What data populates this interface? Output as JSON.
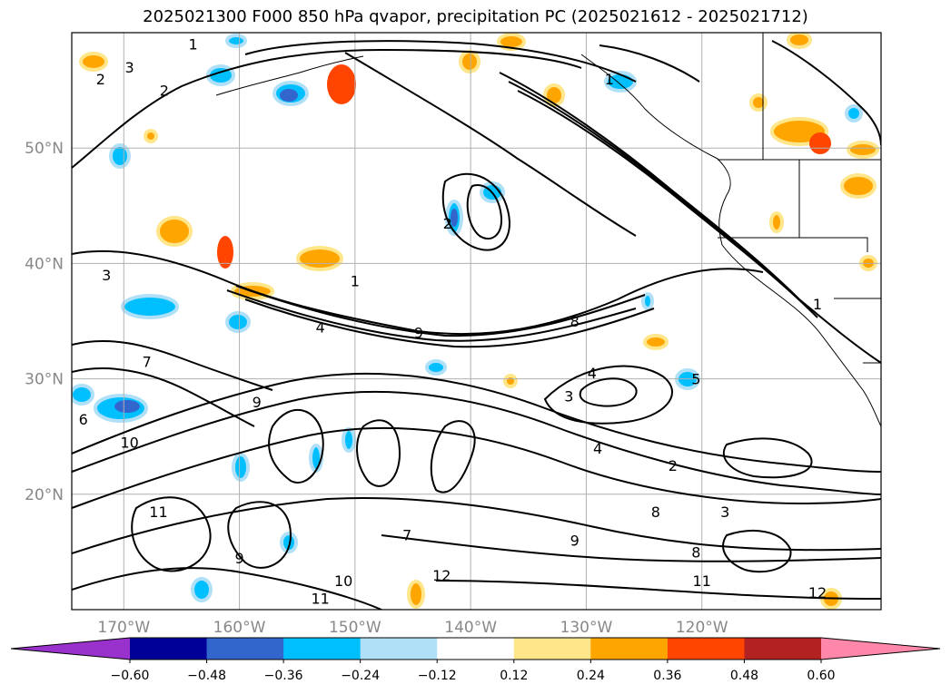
{
  "chart_data": {
    "type": "heatmap",
    "title": "2025021300 F000 850 hPa qvapor, precipitation PC (2025021612 - 2025021712)",
    "projection": "cylindrical lat-lon map",
    "x_axis": {
      "ticks": [
        -170,
        -160,
        -150,
        -140,
        -130,
        -120
      ],
      "tick_labels": [
        "170°W",
        "160°W",
        "150°W",
        "140°W",
        "130°W",
        "120°W"
      ],
      "range": [
        -174.5,
        -104.5
      ]
    },
    "y_axis": {
      "ticks": [
        20,
        30,
        40,
        50
      ],
      "tick_labels": [
        "20°N",
        "30°N",
        "40°N",
        "50°N"
      ],
      "range": [
        10,
        60
      ]
    },
    "grid": true,
    "colorbar": {
      "orientation": "horizontal",
      "placement": "bottom",
      "extend": "both",
      "levels": [
        -0.6,
        -0.48,
        -0.36,
        -0.24,
        -0.12,
        0.12,
        0.24,
        0.36,
        0.48,
        0.6
      ],
      "tick_labels": [
        "−0.60",
        "−0.48",
        "−0.36",
        "−0.24",
        "−0.12",
        "0.12",
        "0.24",
        "0.36",
        "0.48",
        "0.60"
      ],
      "colors": [
        "#9932cc",
        "#000099",
        "#3366cc",
        "#00bfff",
        "#b0e0f8",
        "#ffffff",
        "#ffe68a",
        "#ffa500",
        "#ff4500",
        "#b22222",
        "#ff88aa"
      ]
    },
    "contour_labels": [
      {
        "text": "1",
        "lon": -150.0,
        "lat": 38.5
      },
      {
        "text": "1",
        "lon": -164.0,
        "lat": 59.0
      },
      {
        "text": "1",
        "lon": -128.0,
        "lat": 56.0
      },
      {
        "text": "1",
        "lon": -110.0,
        "lat": 36.5
      },
      {
        "text": "2",
        "lon": -172.0,
        "lat": 56.0
      },
      {
        "text": "2",
        "lon": -166.5,
        "lat": 55.0
      },
      {
        "text": "2",
        "lon": -142.0,
        "lat": 43.5
      },
      {
        "text": "2",
        "lon": -122.5,
        "lat": 22.5
      },
      {
        "text": "3",
        "lon": -169.5,
        "lat": 57.0
      },
      {
        "text": "3",
        "lon": -171.5,
        "lat": 39.0
      },
      {
        "text": "3",
        "lon": -131.5,
        "lat": 28.5
      },
      {
        "text": "3",
        "lon": -118.0,
        "lat": 18.5
      },
      {
        "text": "4",
        "lon": -153.0,
        "lat": 34.5
      },
      {
        "text": "4",
        "lon": -129.5,
        "lat": 30.5
      },
      {
        "text": "4",
        "lon": -129.0,
        "lat": 24.0
      },
      {
        "text": "5",
        "lon": -120.5,
        "lat": 30.0
      },
      {
        "text": "6",
        "lon": -173.5,
        "lat": 26.5
      },
      {
        "text": "7",
        "lon": -168.0,
        "lat": 31.5
      },
      {
        "text": "7",
        "lon": -145.5,
        "lat": 16.5
      },
      {
        "text": "8",
        "lon": -131.0,
        "lat": 35.0
      },
      {
        "text": "8",
        "lon": -124.0,
        "lat": 18.5
      },
      {
        "text": "8",
        "lon": -120.5,
        "lat": 15.0
      },
      {
        "text": "9",
        "lon": -158.5,
        "lat": 28.0
      },
      {
        "text": "9",
        "lon": -160.0,
        "lat": 14.5
      },
      {
        "text": "9",
        "lon": -144.5,
        "lat": 34.0
      },
      {
        "text": "9",
        "lon": -131.0,
        "lat": 16.0
      },
      {
        "text": "10",
        "lon": -169.5,
        "lat": 24.5
      },
      {
        "text": "10",
        "lon": -151.0,
        "lat": 12.5
      },
      {
        "text": "11",
        "lon": -167.0,
        "lat": 18.5
      },
      {
        "text": "11",
        "lon": -153.0,
        "lat": 11.0
      },
      {
        "text": "11",
        "lon": -120.0,
        "lat": 12.5
      },
      {
        "text": "12",
        "lon": -142.5,
        "lat": 13.0
      },
      {
        "text": "12",
        "lon": -110.0,
        "lat": 11.5
      }
    ]
  }
}
